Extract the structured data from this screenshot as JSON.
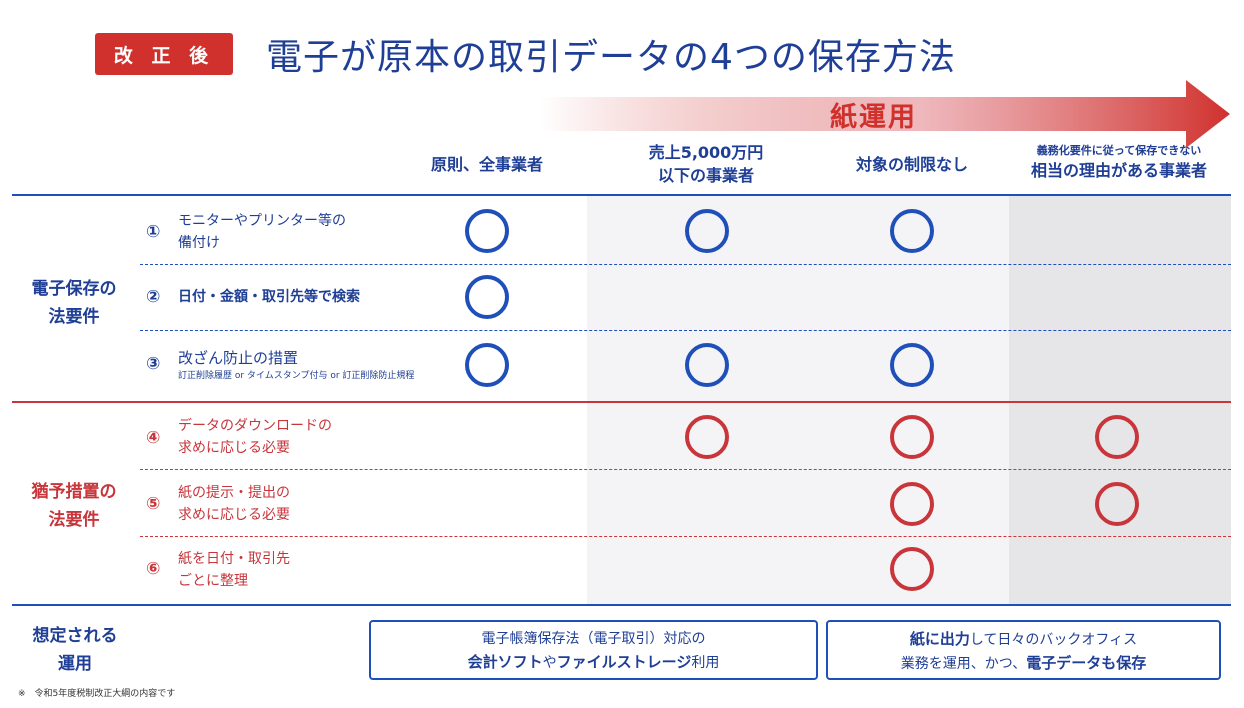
{
  "header": {
    "badge": "改 正 後",
    "title": "電子が原本の取引データの4つの保存方法",
    "arrow_label": "紙運用"
  },
  "columns": {
    "c1": "原則、全事業者",
    "c2_line1": "売上5,000万円",
    "c2_line2": "以下の事業者",
    "c3": "対象の制限なし",
    "c4_line1": "義務化要件に従って保存できない",
    "c4_line2": "相当の理由がある事業者"
  },
  "groups": {
    "electronic_line1": "電子保存の",
    "electronic_line2": "法要件",
    "grace_line1": "猶予措置の",
    "grace_line2": "法要件"
  },
  "rows": [
    {
      "num": "①",
      "line1": "モニターやプリンター等の",
      "line2": "備付け",
      "marks": [
        true,
        true,
        true,
        false
      ]
    },
    {
      "num": "②",
      "line1": "日付・金額・取引先等で検索",
      "line2": "",
      "marks": [
        true,
        false,
        false,
        false
      ]
    },
    {
      "num": "③",
      "line1": "改ざん防止の措置",
      "sub": "訂正削除履歴 or タイムスタンプ付与 or 訂正削除防止規程",
      "marks": [
        true,
        true,
        true,
        false
      ]
    },
    {
      "num": "④",
      "line1": "データのダウンロードの",
      "line2": "求めに応じる必要",
      "marks": [
        false,
        true,
        true,
        true
      ]
    },
    {
      "num": "⑤",
      "line1": "紙の提示・提出の",
      "line2": "求めに応じる必要",
      "marks": [
        false,
        false,
        true,
        true
      ]
    },
    {
      "num": "⑥",
      "line1": "紙を日付・取引先",
      "line2": "ごとに整理",
      "marks": [
        false,
        false,
        true,
        false
      ]
    }
  ],
  "operation": {
    "label_line1": "想定される",
    "label_line2": "運用",
    "box1_line1": "電子帳簿保存法（電子取引）対応の",
    "box1_b1": "会計ソフト",
    "box1_t1": "や",
    "box1_b2": "ファイルストレージ",
    "box1_t2": "利用",
    "box2_b1": "紙に出力",
    "box2_t1": "して日々のバックオフィス",
    "box2_t2": "業務を運用、かつ、",
    "box2_b2": "電子データも保存"
  },
  "footnote": "※　令和5年度税制改正大綱の内容です",
  "colors": {
    "blue": "#1f4fb8",
    "red": "#c8353a",
    "badge": "#d0312d"
  }
}
